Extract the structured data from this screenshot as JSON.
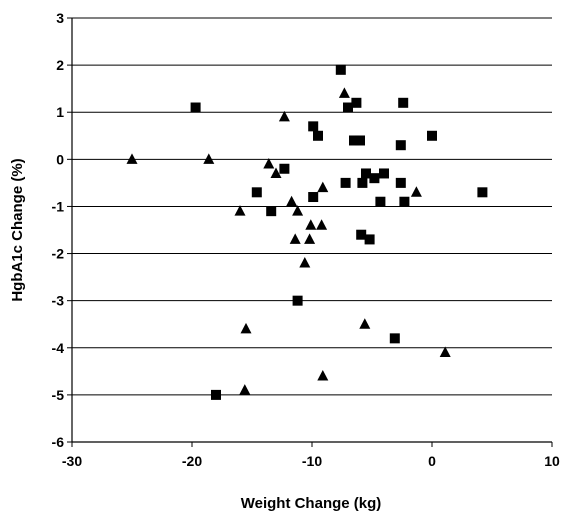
{
  "chart_data": {
    "type": "scatter",
    "title": "",
    "xlabel": "Weight Change (kg)",
    "ylabel": "HgbA1c Change (%)",
    "xlim": [
      -30,
      10
    ],
    "ylim": [
      -6,
      3
    ],
    "x_ticks": [
      "-30",
      "-20",
      "-10",
      "0",
      "10"
    ],
    "y_ticks": [
      "3",
      "2",
      "1",
      "0",
      "-1",
      "-2",
      "-3",
      "-4",
      "-5",
      "-6"
    ],
    "grid": "horizontal major gridlines",
    "legend": "none",
    "colors": {
      "markers": "#000000",
      "grid": "#000000",
      "background": "#ffffff"
    },
    "series": [
      {
        "marker": "square",
        "points": [
          [
            -19.7,
            1.1
          ],
          [
            -18.0,
            -5.0
          ],
          [
            -14.6,
            -0.7
          ],
          [
            -13.4,
            -1.1
          ],
          [
            -12.3,
            -0.2
          ],
          [
            -11.2,
            -3.0
          ],
          [
            -9.9,
            0.7
          ],
          [
            -9.9,
            -0.8
          ],
          [
            -9.5,
            0.5
          ],
          [
            -7.6,
            1.9
          ],
          [
            -7.2,
            -0.5
          ],
          [
            -7.0,
            1.1
          ],
          [
            -6.5,
            0.4
          ],
          [
            -6.3,
            1.2
          ],
          [
            -6.0,
            0.4
          ],
          [
            -5.8,
            -0.5
          ],
          [
            -5.9,
            -1.6
          ],
          [
            -5.5,
            -0.3
          ],
          [
            -5.2,
            -1.7
          ],
          [
            -4.8,
            -0.4
          ],
          [
            -4.3,
            -0.9
          ],
          [
            -4.0,
            -0.3
          ],
          [
            -3.1,
            -3.8
          ],
          [
            -2.6,
            0.3
          ],
          [
            -2.6,
            -0.5
          ],
          [
            -2.4,
            1.2
          ],
          [
            -2.3,
            -0.9
          ],
          [
            0.0,
            0.5
          ],
          [
            4.2,
            -0.7
          ]
        ]
      },
      {
        "marker": "triangle",
        "points": [
          [
            -25.0,
            0.0
          ],
          [
            -18.6,
            0.0
          ],
          [
            -16.0,
            -1.1
          ],
          [
            -15.6,
            -4.9
          ],
          [
            -15.5,
            -3.6
          ],
          [
            -13.6,
            -0.1
          ],
          [
            -13.0,
            -0.3
          ],
          [
            -12.3,
            0.9
          ],
          [
            -11.7,
            -0.9
          ],
          [
            -11.4,
            -1.7
          ],
          [
            -11.2,
            -1.1
          ],
          [
            -10.6,
            -2.2
          ],
          [
            -10.2,
            -1.7
          ],
          [
            -10.1,
            -1.4
          ],
          [
            -9.2,
            -1.4
          ],
          [
            -9.1,
            -0.6
          ],
          [
            -9.1,
            -4.6
          ],
          [
            -7.3,
            1.4
          ],
          [
            -5.6,
            -3.5
          ],
          [
            -1.3,
            -0.7
          ],
          [
            1.1,
            -4.1
          ]
        ]
      }
    ]
  }
}
